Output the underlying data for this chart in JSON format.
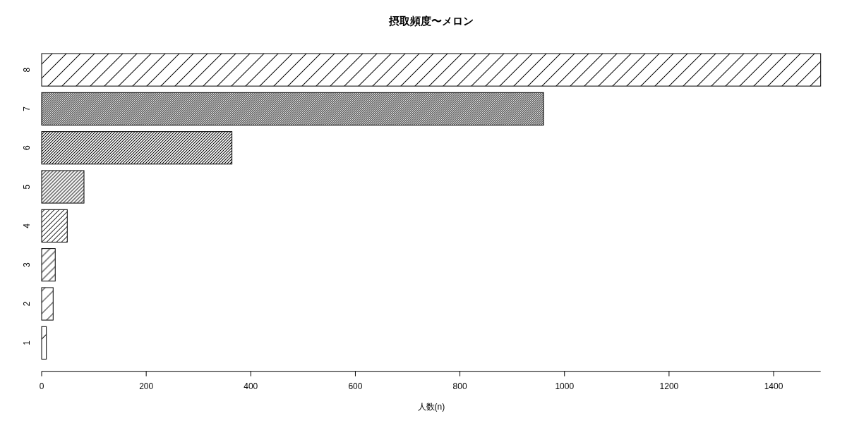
{
  "chart_data": {
    "type": "bar",
    "orientation": "horizontal",
    "title": "摂取頻度〜メロン",
    "xlabel": "人数(n)",
    "categories": [
      "8",
      "7",
      "6",
      "5",
      "4",
      "3",
      "2",
      "1"
    ],
    "values": [
      1490,
      960,
      364,
      81,
      49,
      26,
      22,
      9
    ],
    "color": "#000000",
    "xlim": [
      0,
      1490
    ],
    "xticks": [
      0,
      200,
      400,
      600,
      800,
      1000,
      1200,
      1400
    ]
  }
}
